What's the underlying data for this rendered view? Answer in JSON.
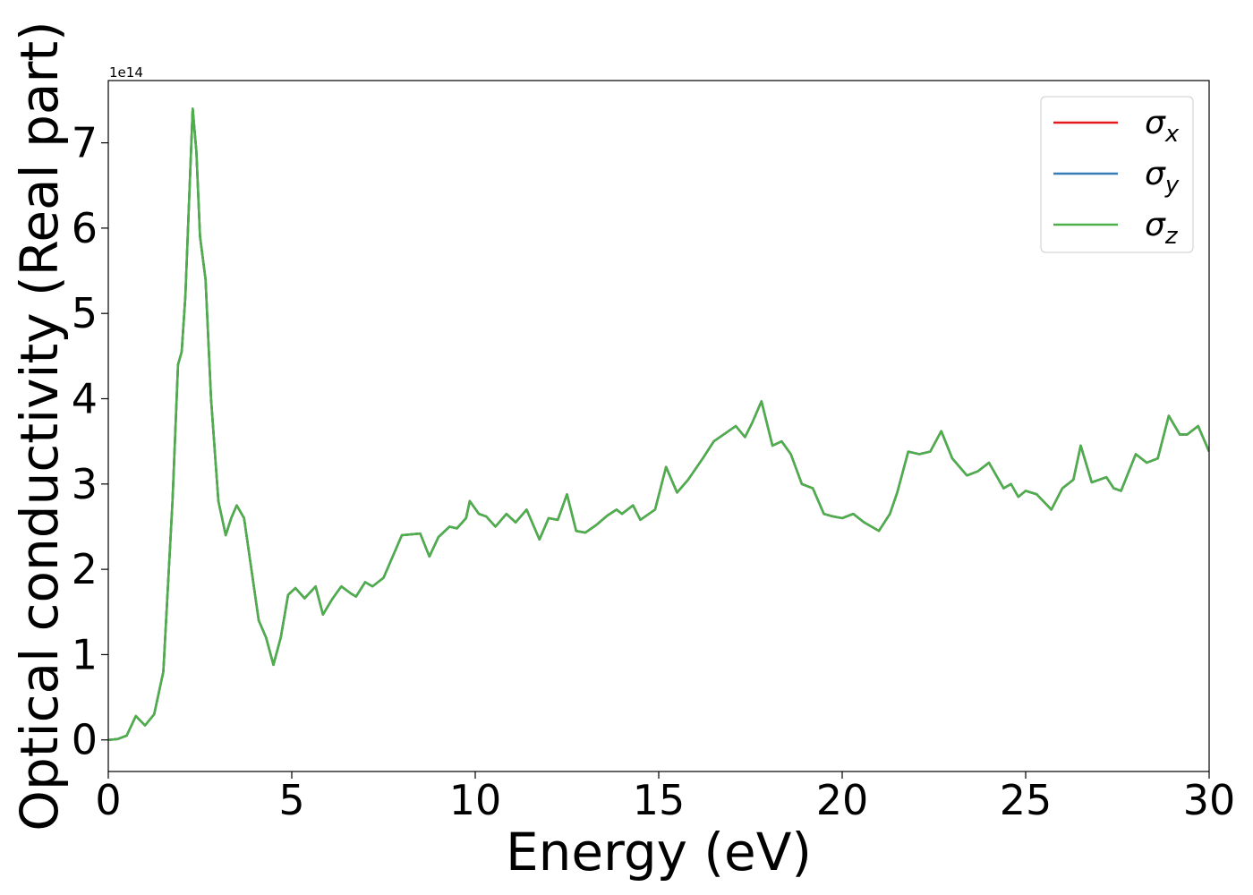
{
  "chart_data": {
    "type": "line",
    "x_label": "Energy (eV)",
    "y_label": "Optical conductivity (Real part)",
    "y_offset_label": "1e14",
    "xlim": [
      0,
      30
    ],
    "ylim": [
      -0.37,
      7.73
    ],
    "xticks": [
      0,
      5,
      10,
      15,
      20,
      25,
      30
    ],
    "yticks": [
      0,
      1,
      2,
      3,
      4,
      5,
      6,
      7
    ],
    "legend": "upper right",
    "x": [
      0,
      0.25,
      0.5,
      0.75,
      1.0,
      1.25,
      1.5,
      1.75,
      1.9,
      2.0,
      2.1,
      2.3,
      2.4,
      2.5,
      2.65,
      2.8,
      3.0,
      3.2,
      3.35,
      3.5,
      3.7,
      3.9,
      4.1,
      4.3,
      4.5,
      4.7,
      4.9,
      5.1,
      5.35,
      5.65,
      5.85,
      6.1,
      6.35,
      6.6,
      6.75,
      7.0,
      7.2,
      7.5,
      7.8,
      8.0,
      8.5,
      8.75,
      9.0,
      9.3,
      9.5,
      9.75,
      9.85,
      10.1,
      10.3,
      10.55,
      10.85,
      11.1,
      11.4,
      11.75,
      12.0,
      12.25,
      12.5,
      12.75,
      13.0,
      13.3,
      13.6,
      13.85,
      14.0,
      14.3,
      14.5,
      14.9,
      15.2,
      15.5,
      15.8,
      16.2,
      16.5,
      16.9,
      17.1,
      17.35,
      17.55,
      17.8,
      18.1,
      18.35,
      18.6,
      18.9,
      19.2,
      19.5,
      19.75,
      20.0,
      20.3,
      20.6,
      21.0,
      21.3,
      21.5,
      21.8,
      22.1,
      22.4,
      22.7,
      23.0,
      23.4,
      23.7,
      24.0,
      24.4,
      24.6,
      24.8,
      25.0,
      25.3,
      25.7,
      26.0,
      26.3,
      26.5,
      26.8,
      27.2,
      27.4,
      27.6,
      28.0,
      28.3,
      28.6,
      28.9,
      29.2,
      29.4,
      29.7,
      30.0
    ],
    "series": [
      {
        "name": "σx",
        "color": "#e41a1c",
        "values": [
          0,
          0.01,
          0.05,
          0.28,
          0.17,
          0.3,
          0.8,
          2.8,
          4.4,
          4.55,
          5.2,
          7.4,
          6.9,
          5.9,
          5.4,
          4.0,
          2.8,
          2.4,
          2.6,
          2.75,
          2.6,
          2.0,
          1.4,
          1.2,
          0.88,
          1.2,
          1.7,
          1.78,
          1.66,
          1.8,
          1.47,
          1.65,
          1.8,
          1.72,
          1.68,
          1.85,
          1.8,
          1.9,
          2.2,
          2.4,
          2.42,
          2.15,
          2.38,
          2.5,
          2.48,
          2.6,
          2.8,
          2.65,
          2.62,
          2.5,
          2.65,
          2.55,
          2.7,
          2.35,
          2.6,
          2.58,
          2.88,
          2.45,
          2.43,
          2.52,
          2.63,
          2.7,
          2.65,
          2.75,
          2.58,
          2.7,
          3.2,
          2.9,
          3.05,
          3.3,
          3.5,
          3.62,
          3.68,
          3.55,
          3.72,
          3.97,
          3.45,
          3.5,
          3.35,
          3.0,
          2.95,
          2.65,
          2.62,
          2.6,
          2.65,
          2.55,
          2.45,
          2.65,
          2.9,
          3.38,
          3.35,
          3.38,
          3.62,
          3.3,
          3.1,
          3.15,
          3.25,
          2.95,
          3.0,
          2.85,
          2.92,
          2.88,
          2.7,
          2.95,
          3.05,
          3.45,
          3.02,
          3.08,
          2.95,
          2.92,
          3.35,
          3.25,
          3.3,
          3.8,
          3.58,
          3.58,
          3.68,
          3.38
        ]
      },
      {
        "name": "σy",
        "color": "#377eb8",
        "values": [
          0,
          0.01,
          0.05,
          0.28,
          0.17,
          0.3,
          0.8,
          2.8,
          4.4,
          4.55,
          5.2,
          7.4,
          6.9,
          5.9,
          5.4,
          4.0,
          2.8,
          2.4,
          2.6,
          2.75,
          2.6,
          2.0,
          1.4,
          1.2,
          0.88,
          1.2,
          1.7,
          1.78,
          1.66,
          1.8,
          1.47,
          1.65,
          1.8,
          1.72,
          1.68,
          1.85,
          1.8,
          1.9,
          2.2,
          2.4,
          2.42,
          2.15,
          2.38,
          2.5,
          2.48,
          2.6,
          2.8,
          2.65,
          2.62,
          2.5,
          2.65,
          2.55,
          2.7,
          2.35,
          2.6,
          2.58,
          2.88,
          2.45,
          2.43,
          2.52,
          2.63,
          2.7,
          2.65,
          2.75,
          2.58,
          2.7,
          3.2,
          2.9,
          3.05,
          3.3,
          3.5,
          3.62,
          3.68,
          3.55,
          3.72,
          3.97,
          3.45,
          3.5,
          3.35,
          3.0,
          2.95,
          2.65,
          2.62,
          2.6,
          2.65,
          2.55,
          2.45,
          2.65,
          2.9,
          3.38,
          3.35,
          3.38,
          3.62,
          3.3,
          3.1,
          3.15,
          3.25,
          2.95,
          3.0,
          2.85,
          2.92,
          2.88,
          2.7,
          2.95,
          3.05,
          3.45,
          3.02,
          3.08,
          2.95,
          2.92,
          3.35,
          3.25,
          3.3,
          3.8,
          3.58,
          3.58,
          3.68,
          3.38
        ]
      },
      {
        "name": "σz",
        "color": "#4daf4a",
        "values": [
          0,
          0.01,
          0.05,
          0.28,
          0.17,
          0.3,
          0.8,
          2.8,
          4.4,
          4.55,
          5.2,
          7.4,
          6.9,
          5.9,
          5.4,
          4.0,
          2.8,
          2.4,
          2.6,
          2.75,
          2.6,
          2.0,
          1.4,
          1.2,
          0.88,
          1.2,
          1.7,
          1.78,
          1.66,
          1.8,
          1.47,
          1.65,
          1.8,
          1.72,
          1.68,
          1.85,
          1.8,
          1.9,
          2.2,
          2.4,
          2.42,
          2.15,
          2.38,
          2.5,
          2.48,
          2.6,
          2.8,
          2.65,
          2.62,
          2.5,
          2.65,
          2.55,
          2.7,
          2.35,
          2.6,
          2.58,
          2.88,
          2.45,
          2.43,
          2.52,
          2.63,
          2.7,
          2.65,
          2.75,
          2.58,
          2.7,
          3.2,
          2.9,
          3.05,
          3.3,
          3.5,
          3.62,
          3.68,
          3.55,
          3.72,
          3.97,
          3.45,
          3.5,
          3.35,
          3.0,
          2.95,
          2.65,
          2.62,
          2.6,
          2.65,
          2.55,
          2.45,
          2.65,
          2.9,
          3.38,
          3.35,
          3.38,
          3.62,
          3.3,
          3.1,
          3.15,
          3.25,
          2.95,
          3.0,
          2.85,
          2.92,
          2.88,
          2.7,
          2.95,
          3.05,
          3.45,
          3.02,
          3.08,
          2.95,
          2.92,
          3.35,
          3.25,
          3.3,
          3.8,
          3.58,
          3.58,
          3.68,
          3.38
        ]
      }
    ]
  }
}
